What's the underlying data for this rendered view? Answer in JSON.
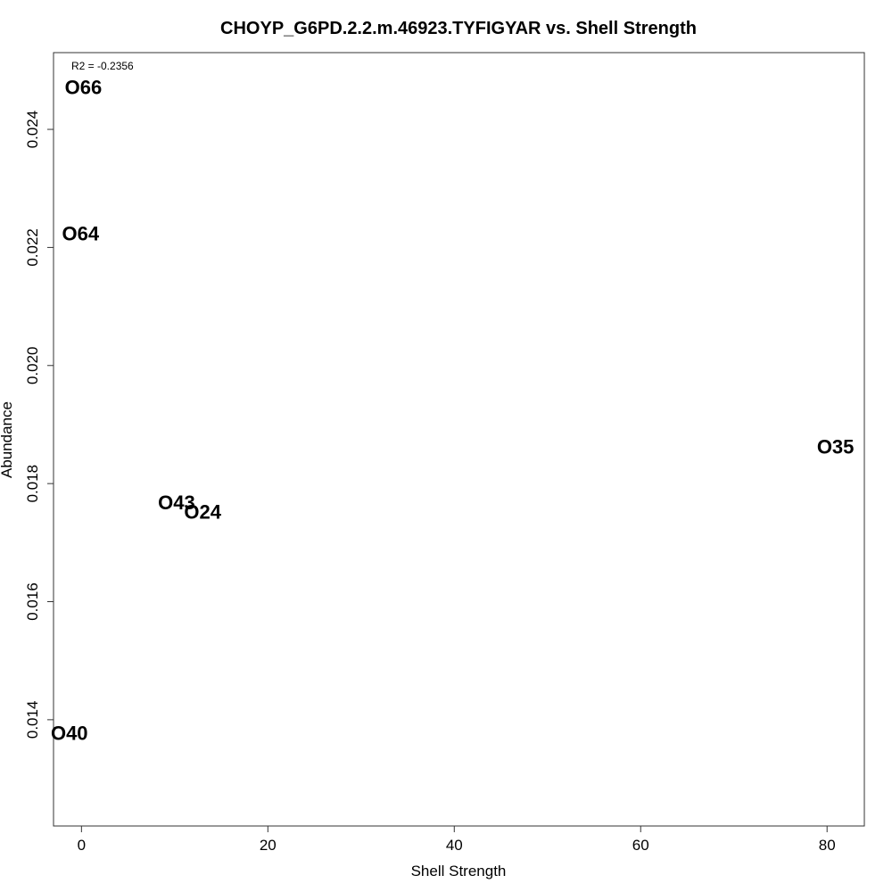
{
  "chart_data": {
    "type": "scatter",
    "title": "CHOYP_G6PD.2.2.m.46923.TYFIGYAR vs. Shell Strength",
    "xlabel": "Shell Strength",
    "ylabel": "Abundance",
    "xlim": [
      -3,
      84
    ],
    "ylim": [
      0.0122,
      0.0253
    ],
    "x_ticks": [
      0,
      20,
      40,
      60,
      80
    ],
    "y_ticks": [
      0.014,
      0.016,
      0.018,
      0.02,
      0.022,
      0.024
    ],
    "x_tick_labels": [
      "0",
      "20",
      "40",
      "60",
      "80"
    ],
    "y_tick_labels": [
      "0.014",
      "0.016",
      "0.018",
      "0.020",
      "0.022",
      "0.024"
    ],
    "annotation": "R2 = -0.2356",
    "grid": false,
    "points": [
      {
        "label": "O66",
        "x": 0.2,
        "y": 0.02471
      },
      {
        "label": "O64",
        "x": -0.1,
        "y": 0.02223
      },
      {
        "label": "O35",
        "x": 80.9,
        "y": 0.01862
      },
      {
        "label": "O43",
        "x": 10.2,
        "y": 0.01768
      },
      {
        "label": "O24",
        "x": 13.0,
        "y": 0.01752
      },
      {
        "label": "O40",
        "x": -1.3,
        "y": 0.01377
      }
    ]
  }
}
